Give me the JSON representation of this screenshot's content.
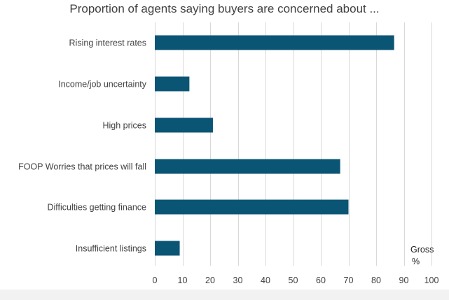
{
  "chart_data": {
    "type": "bar",
    "orientation": "horizontal",
    "title": "Proportion of agents saying buyers are concerned about ...",
    "categories": [
      "Rising interest rates",
      "Income/job uncertainty",
      "High prices",
      "FOOP Worries that prices will fall",
      "Difficulties getting finance",
      "Insufficient listings"
    ],
    "values": [
      86.5,
      12.5,
      21,
      67,
      70,
      9
    ],
    "xlim": [
      0,
      100
    ],
    "xticks": [
      0,
      10,
      20,
      30,
      40,
      50,
      60,
      70,
      80,
      90,
      100
    ],
    "xlabel_line1": "Gross",
    "xlabel_line2": "%",
    "grid": "vertical",
    "bar_color": "#0b5574"
  }
}
